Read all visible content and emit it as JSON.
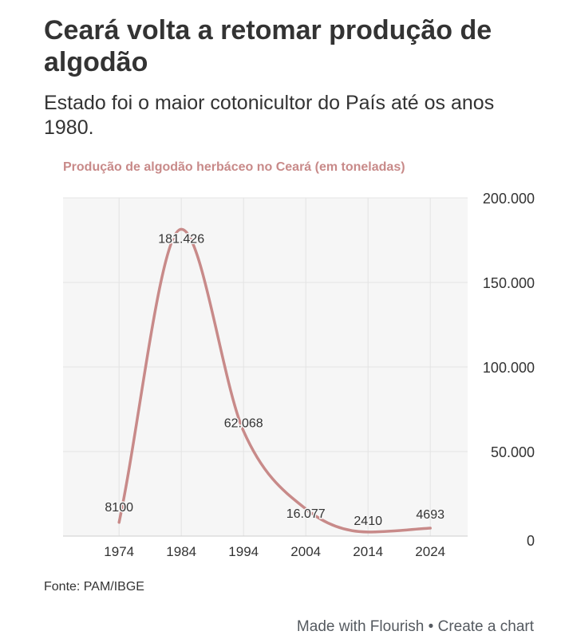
{
  "header": {
    "title": "Ceará volta a retomar produção de algodão",
    "subtitle": "Estado foi o maior cotonicultor do País até os anos 1980."
  },
  "chart_data": {
    "type": "line",
    "title": "Produção de algodão herbáceo no Ceará (em toneladas)",
    "x": [
      1974,
      1984,
      1994,
      2004,
      2014,
      2024
    ],
    "x_tick_labels": [
      "1974",
      "1984",
      "1994",
      "2004",
      "2014",
      "2024"
    ],
    "series": [
      {
        "name": "Produção de algodão herbáceo",
        "values": [
          8100,
          181426,
          62068,
          16077,
          2410,
          4693
        ],
        "labels": [
          "8100",
          "181.426",
          "62.068",
          "16.077",
          "2410",
          "4693"
        ],
        "color": "#c88a89"
      }
    ],
    "ylim": [
      0,
      200000
    ],
    "xlim": [
      1965,
      2030
    ],
    "y_ticks": [
      0,
      50000,
      100000,
      150000,
      200000
    ],
    "y_tick_labels": [
      "0",
      "50.000",
      "100.000",
      "150.000",
      "200.000"
    ],
    "y_axis_position": "right",
    "grid": true
  },
  "colors": {
    "line": "#c88a89",
    "plot_background": "#f6f6f6",
    "grid": "#e4e4e4",
    "text": "#333333",
    "footer_text": "#555a60"
  },
  "source": "Fonte: PAM/IBGE",
  "footer": {
    "made_with": "Made with Flourish",
    "separator": " • ",
    "create": "Create a chart"
  }
}
